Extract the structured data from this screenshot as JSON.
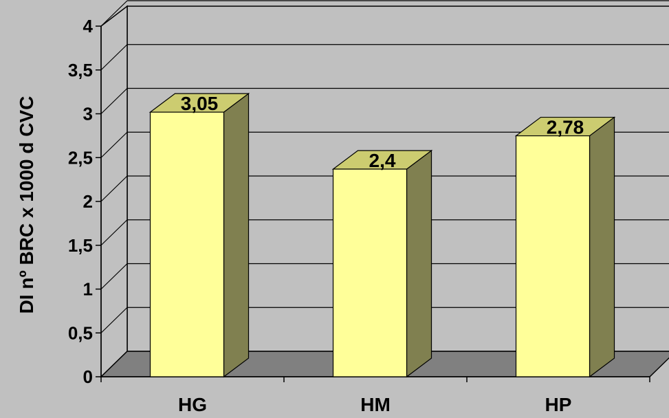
{
  "chart_data": {
    "type": "bar",
    "categories": [
      "HG",
      "HM",
      "HP"
    ],
    "values": [
      3.05,
      2.4,
      2.78
    ],
    "data_labels": [
      "3,05",
      "2,4",
      "2,78"
    ],
    "title": "",
    "xlabel": "",
    "ylabel": "DI nº BRC x 1000 d CVC",
    "ylim": [
      0,
      4
    ],
    "yticks": [
      0,
      0.5,
      1,
      1.5,
      2,
      2.5,
      3,
      3.5,
      4
    ],
    "ytick_labels": [
      "0",
      "0,5",
      "1",
      "1,5",
      "2",
      "2,5",
      "3",
      "3,5",
      "4"
    ],
    "grid": true,
    "style": "3d-column",
    "colors": {
      "background": "#c0c0c0",
      "bar_front": "#ffff99",
      "bar_top": "#cccc70",
      "bar_side": "#808050",
      "floor": "#808080",
      "grid": "#000000"
    }
  }
}
